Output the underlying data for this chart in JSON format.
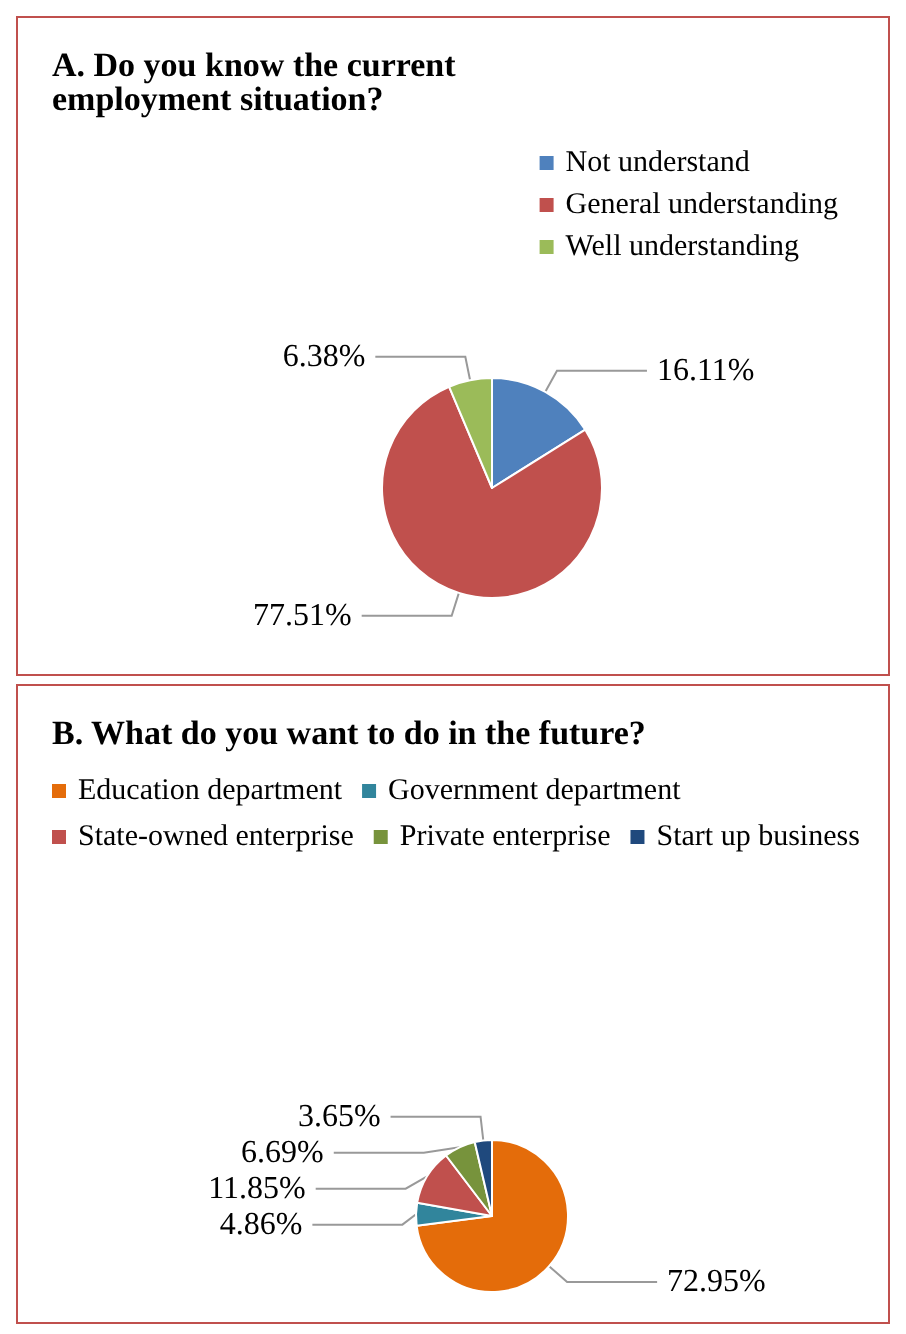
{
  "chart_data": [
    {
      "type": "pie",
      "title": "A. Do you know the current employment situation?",
      "categories": [
        "Not understand",
        "General understanding",
        "Well understanding"
      ],
      "values": [
        16.11,
        77.51,
        6.38
      ],
      "colors": [
        "#4f81bd",
        "#c0504d",
        "#9bbb59"
      ],
      "value_labels": [
        "16.11%",
        "77.51%",
        "6.38%"
      ],
      "legend": "top right"
    },
    {
      "type": "pie",
      "title": "B. What do you want to do in the future?",
      "categories": [
        "Education department",
        "Government department",
        "State-owned enterprise",
        "Private enterprise",
        "Start up business"
      ],
      "values": [
        72.95,
        4.86,
        11.85,
        6.69,
        3.65
      ],
      "colors": [
        "#e46c0a",
        "#31859c",
        "#c0504d",
        "#77933c",
        "#1f497d"
      ],
      "value_labels": [
        "72.95%",
        "4.86%",
        "11.85%",
        "6.69%",
        "3.65%"
      ],
      "legend": "top"
    }
  ]
}
